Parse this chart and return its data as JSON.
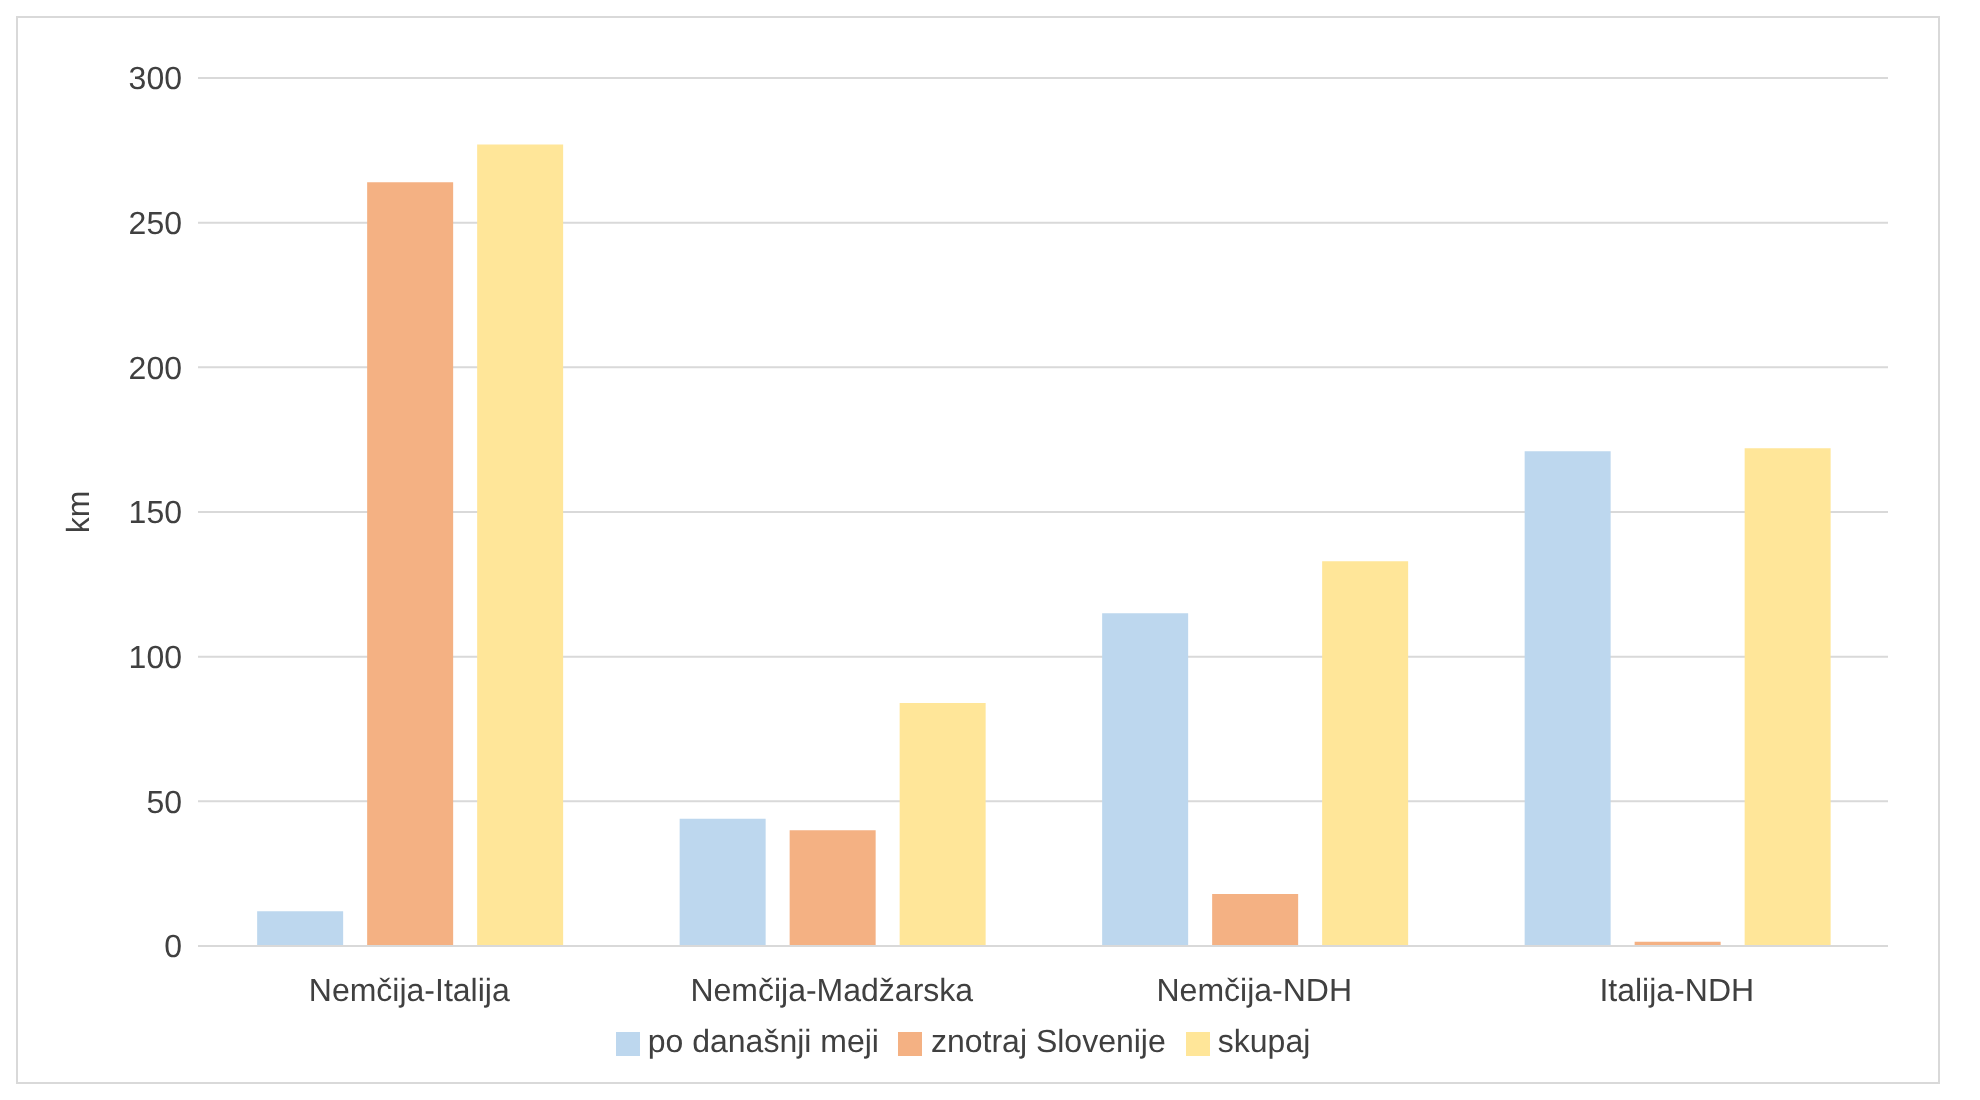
{
  "chart_data": {
    "type": "bar",
    "ylabel": "km",
    "categories": [
      "Nemčija-Italija",
      "Nemčija-Madžarska",
      "Nemčija-NDH",
      "Italija-NDH"
    ],
    "series": [
      {
        "name": "po današnji meji",
        "color": "#bdd7ee",
        "values": [
          12,
          44,
          115,
          171
        ]
      },
      {
        "name": "znotraj Slovenije",
        "color": "#f4b183",
        "values": [
          264,
          40,
          18,
          1.5
        ]
      },
      {
        "name": "skupaj",
        "color": "#ffe699",
        "values": [
          277,
          84,
          133,
          172
        ]
      }
    ],
    "ylim": [
      0,
      300
    ],
    "yticks": [
      0,
      50,
      100,
      150,
      200,
      250,
      300
    ],
    "grid": "y",
    "legend": "bottom"
  }
}
